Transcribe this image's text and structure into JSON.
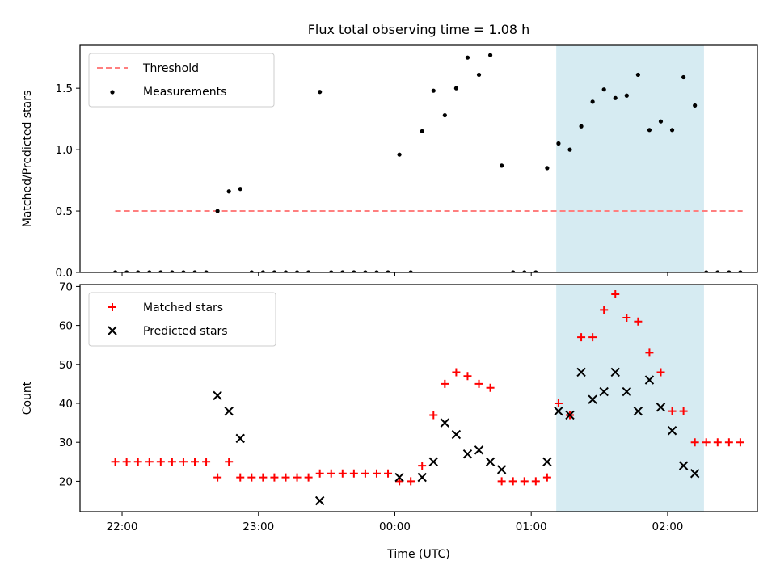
{
  "chart_data": [
    {
      "type": "scatter",
      "title": "Flux total observing time = 1.08 h",
      "xlabel": "",
      "ylabel": "Matched/Predicted stars",
      "ylim": [
        0,
        1.85
      ],
      "yticks": [
        "0.0",
        "0.5",
        "1.0",
        "1.5"
      ],
      "legend_position": "top-left",
      "highlight_span": {
        "start": "01:11",
        "end": "02:16",
        "color": "#add8e6"
      },
      "series": [
        {
          "name": "Threshold",
          "kind": "dashed-line",
          "color": "#ff7f7f",
          "points": [
            {
              "x": "21:57",
              "y": 0.5
            },
            {
              "x": "02:33",
              "y": 0.5
            }
          ]
        },
        {
          "name": "Measurements",
          "kind": "dots",
          "color": "#000000",
          "points": [
            {
              "x": "21:57",
              "y": 0
            },
            {
              "x": "22:02",
              "y": 0
            },
            {
              "x": "22:07",
              "y": 0
            },
            {
              "x": "22:12",
              "y": 0
            },
            {
              "x": "22:17",
              "y": 0
            },
            {
              "x": "22:22",
              "y": 0
            },
            {
              "x": "22:27",
              "y": 0
            },
            {
              "x": "22:32",
              "y": 0
            },
            {
              "x": "22:37",
              "y": 0
            },
            {
              "x": "22:42",
              "y": 0.5
            },
            {
              "x": "22:47",
              "y": 0.66
            },
            {
              "x": "22:52",
              "y": 0.68
            },
            {
              "x": "22:57",
              "y": 0
            },
            {
              "x": "23:02",
              "y": 0
            },
            {
              "x": "23:07",
              "y": 0
            },
            {
              "x": "23:12",
              "y": 0
            },
            {
              "x": "23:17",
              "y": 0
            },
            {
              "x": "23:22",
              "y": 0
            },
            {
              "x": "23:27",
              "y": 1.47
            },
            {
              "x": "23:32",
              "y": 0
            },
            {
              "x": "23:37",
              "y": 0
            },
            {
              "x": "23:42",
              "y": 0
            },
            {
              "x": "23:47",
              "y": 0
            },
            {
              "x": "23:52",
              "y": 0
            },
            {
              "x": "23:57",
              "y": 0
            },
            {
              "x": "00:02",
              "y": 0.96
            },
            {
              "x": "00:07",
              "y": 0
            },
            {
              "x": "00:12",
              "y": 1.15
            },
            {
              "x": "00:17",
              "y": 1.48
            },
            {
              "x": "00:22",
              "y": 1.28
            },
            {
              "x": "00:27",
              "y": 1.5
            },
            {
              "x": "00:32",
              "y": 1.75
            },
            {
              "x": "00:37",
              "y": 1.61
            },
            {
              "x": "00:42",
              "y": 1.77
            },
            {
              "x": "00:47",
              "y": 0.87
            },
            {
              "x": "00:52",
              "y": 0
            },
            {
              "x": "00:57",
              "y": 0
            },
            {
              "x": "01:02",
              "y": 0
            },
            {
              "x": "01:07",
              "y": 0.85
            },
            {
              "x": "01:12",
              "y": 1.05
            },
            {
              "x": "01:17",
              "y": 1.0
            },
            {
              "x": "01:22",
              "y": 1.19
            },
            {
              "x": "01:27",
              "y": 1.39
            },
            {
              "x": "01:32",
              "y": 1.49
            },
            {
              "x": "01:37",
              "y": 1.42
            },
            {
              "x": "01:42",
              "y": 1.44
            },
            {
              "x": "01:47",
              "y": 1.61
            },
            {
              "x": "01:52",
              "y": 1.16
            },
            {
              "x": "01:57",
              "y": 1.23
            },
            {
              "x": "02:02",
              "y": 1.16
            },
            {
              "x": "02:07",
              "y": 1.59
            },
            {
              "x": "02:12",
              "y": 1.36
            },
            {
              "x": "02:17",
              "y": 0
            },
            {
              "x": "02:22",
              "y": 0
            },
            {
              "x": "02:27",
              "y": 0
            },
            {
              "x": "02:32",
              "y": 0
            }
          ]
        }
      ]
    },
    {
      "type": "scatter",
      "title": "",
      "xlabel": "Time (UTC)",
      "ylabel": "Count",
      "ylim": [
        12.2,
        70.5
      ],
      "yticks": [
        "20",
        "30",
        "40",
        "50",
        "60",
        "70"
      ],
      "xticks": [
        "22:00",
        "23:00",
        "00:00",
        "01:00",
        "02:00"
      ],
      "legend_position": "top-left",
      "highlight_span": {
        "start": "01:11",
        "end": "02:16",
        "color": "#add8e6"
      },
      "series": [
        {
          "name": "Matched stars",
          "marker": "plus",
          "color": "#ff0000",
          "points": [
            {
              "x": "21:57",
              "y": 25
            },
            {
              "x": "22:02",
              "y": 25
            },
            {
              "x": "22:07",
              "y": 25
            },
            {
              "x": "22:12",
              "y": 25
            },
            {
              "x": "22:17",
              "y": 25
            },
            {
              "x": "22:22",
              "y": 25
            },
            {
              "x": "22:27",
              "y": 25
            },
            {
              "x": "22:32",
              "y": 25
            },
            {
              "x": "22:37",
              "y": 25
            },
            {
              "x": "22:42",
              "y": 21
            },
            {
              "x": "22:47",
              "y": 25
            },
            {
              "x": "22:52",
              "y": 21
            },
            {
              "x": "22:57",
              "y": 21
            },
            {
              "x": "23:02",
              "y": 21
            },
            {
              "x": "23:07",
              "y": 21
            },
            {
              "x": "23:12",
              "y": 21
            },
            {
              "x": "23:17",
              "y": 21
            },
            {
              "x": "23:22",
              "y": 21
            },
            {
              "x": "23:27",
              "y": 22
            },
            {
              "x": "23:32",
              "y": 22
            },
            {
              "x": "23:37",
              "y": 22
            },
            {
              "x": "23:42",
              "y": 22
            },
            {
              "x": "23:47",
              "y": 22
            },
            {
              "x": "23:52",
              "y": 22
            },
            {
              "x": "23:57",
              "y": 22
            },
            {
              "x": "00:02",
              "y": 20
            },
            {
              "x": "00:07",
              "y": 20
            },
            {
              "x": "00:12",
              "y": 24
            },
            {
              "x": "00:17",
              "y": 37
            },
            {
              "x": "00:22",
              "y": 45
            },
            {
              "x": "00:27",
              "y": 48
            },
            {
              "x": "00:32",
              "y": 47
            },
            {
              "x": "00:37",
              "y": 45
            },
            {
              "x": "00:42",
              "y": 44
            },
            {
              "x": "00:47",
              "y": 20
            },
            {
              "x": "00:52",
              "y": 20
            },
            {
              "x": "00:57",
              "y": 20
            },
            {
              "x": "01:02",
              "y": 20
            },
            {
              "x": "01:07",
              "y": 21
            },
            {
              "x": "01:12",
              "y": 40
            },
            {
              "x": "01:17",
              "y": 37
            },
            {
              "x": "01:22",
              "y": 57
            },
            {
              "x": "01:27",
              "y": 57
            },
            {
              "x": "01:32",
              "y": 64
            },
            {
              "x": "01:37",
              "y": 68
            },
            {
              "x": "01:42",
              "y": 62
            },
            {
              "x": "01:47",
              "y": 61
            },
            {
              "x": "01:52",
              "y": 53
            },
            {
              "x": "01:57",
              "y": 48
            },
            {
              "x": "02:02",
              "y": 38
            },
            {
              "x": "02:07",
              "y": 38
            },
            {
              "x": "02:12",
              "y": 30
            },
            {
              "x": "02:17",
              "y": 30
            },
            {
              "x": "02:22",
              "y": 30
            },
            {
              "x": "02:27",
              "y": 30
            },
            {
              "x": "02:32",
              "y": 30
            }
          ]
        },
        {
          "name": "Predicted stars",
          "marker": "x",
          "color": "#000000",
          "points": [
            {
              "x": "22:42",
              "y": 42
            },
            {
              "x": "22:47",
              "y": 38
            },
            {
              "x": "22:52",
              "y": 31
            },
            {
              "x": "23:27",
              "y": 15
            },
            {
              "x": "00:02",
              "y": 21
            },
            {
              "x": "00:12",
              "y": 21
            },
            {
              "x": "00:17",
              "y": 25
            },
            {
              "x": "00:22",
              "y": 35
            },
            {
              "x": "00:27",
              "y": 32
            },
            {
              "x": "00:32",
              "y": 27
            },
            {
              "x": "00:37",
              "y": 28
            },
            {
              "x": "00:42",
              "y": 25
            },
            {
              "x": "00:47",
              "y": 23
            },
            {
              "x": "01:07",
              "y": 25
            },
            {
              "x": "01:12",
              "y": 38
            },
            {
              "x": "01:17",
              "y": 37
            },
            {
              "x": "01:22",
              "y": 48
            },
            {
              "x": "01:27",
              "y": 41
            },
            {
              "x": "01:32",
              "y": 43
            },
            {
              "x": "01:37",
              "y": 48
            },
            {
              "x": "01:42",
              "y": 43
            },
            {
              "x": "01:47",
              "y": 38
            },
            {
              "x": "01:52",
              "y": 46
            },
            {
              "x": "01:57",
              "y": 39
            },
            {
              "x": "02:02",
              "y": 33
            },
            {
              "x": "02:07",
              "y": 24
            },
            {
              "x": "02:12",
              "y": 22
            }
          ]
        }
      ]
    }
  ]
}
